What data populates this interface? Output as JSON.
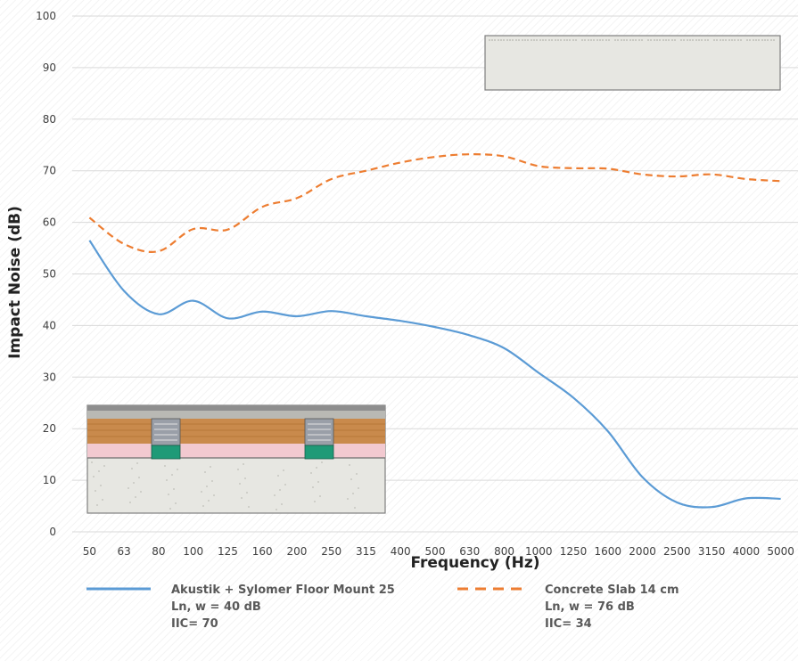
{
  "chart_data": {
    "type": "line",
    "xlabel": "Frequency (Hz)",
    "ylabel": "Impact Noise (dB)",
    "ylim": [
      0,
      100
    ],
    "yticks": [
      0,
      10,
      20,
      30,
      40,
      50,
      60,
      70,
      80,
      90,
      100
    ],
    "grid": true,
    "legend_position": "bottom",
    "categories": [
      "50",
      "63",
      "80",
      "100",
      "125",
      "160",
      "200",
      "250",
      "315",
      "400",
      "500",
      "630",
      "800",
      "1000",
      "1250",
      "1600",
      "2000",
      "2500",
      "3150",
      "4000",
      "5000"
    ],
    "series": [
      {
        "name": "Akustik + Sylomer Floor Mount 25",
        "legend_lines": [
          "Akustik + Sylomer Floor Mount 25",
          "Ln, w = 40 dB",
          "IIC= 70"
        ],
        "color": "#5b9bd5",
        "dash": "solid",
        "values": [
          56.5,
          46.7,
          42.2,
          44.8,
          41.4,
          42.7,
          41.8,
          42.8,
          41.8,
          40.9,
          39.7,
          38.1,
          35.6,
          30.8,
          26.0,
          19.5,
          10.6,
          5.7,
          4.8,
          6.5,
          6.4
        ]
      },
      {
        "name": "Concrete Slab 14 cm",
        "legend_lines": [
          "Concrete Slab 14 cm",
          "Ln, w = 76 dB",
          "IIC= 34"
        ],
        "color": "#ed7d31",
        "dash": "dashed",
        "values": [
          60.9,
          55.8,
          54.4,
          58.7,
          58.6,
          63.0,
          64.7,
          68.4,
          70.0,
          71.6,
          72.7,
          73.2,
          72.8,
          70.9,
          70.5,
          70.4,
          69.3,
          68.9,
          69.3,
          68.4,
          68.0
        ]
      }
    ]
  },
  "decor": {
    "insets": [
      "concrete-slab-section-illustration",
      "floor-mount-section-illustration"
    ],
    "colors": {
      "grid": "#d9d9d9",
      "concrete": "#e7e7e2",
      "wood": "#c98a4c",
      "insulation": "#f2c9d0",
      "mount": "#1f9a77",
      "mount_top": "#9a9fa8"
    }
  }
}
